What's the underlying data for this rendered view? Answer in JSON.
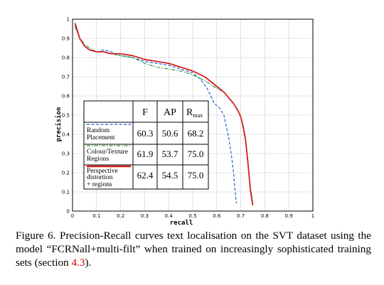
{
  "chart_data": {
    "type": "line",
    "xlabel": "recall",
    "ylabel": "precision",
    "xlim": [
      0,
      1
    ],
    "ylim": [
      0,
      1
    ],
    "xticks": [
      "0",
      "0.1",
      "0.2",
      "0.3",
      "0.4",
      "0.5",
      "0.6",
      "0.7",
      "0.8",
      "0.9",
      "1"
    ],
    "yticks": [
      "0",
      "0.1",
      "0.2",
      "0.3",
      "0.4",
      "0.5",
      "0.6",
      "0.7",
      "0.8",
      "0.9",
      "1"
    ],
    "grid": true,
    "legend_placement": "lower-left",
    "legend_headers": [
      "F",
      "AP",
      "R",
      "max"
    ],
    "series": [
      {
        "label_lines": [
          "Random",
          "Placement"
        ],
        "color": "#1f5fd6",
        "dash": "dashed",
        "F": "60.3",
        "AP": "50.6",
        "Rmax": "68.2",
        "x": [
          0.01,
          0.02,
          0.03,
          0.05,
          0.07,
          0.1,
          0.13,
          0.16,
          0.2,
          0.25,
          0.3,
          0.35,
          0.4,
          0.45,
          0.5,
          0.53,
          0.56,
          0.59,
          0.61,
          0.63,
          0.64,
          0.65,
          0.66,
          0.67,
          0.675,
          0.68,
          0.682
        ],
        "y": [
          0.97,
          0.94,
          0.9,
          0.86,
          0.84,
          0.83,
          0.84,
          0.83,
          0.81,
          0.8,
          0.78,
          0.77,
          0.76,
          0.74,
          0.72,
          0.69,
          0.64,
          0.56,
          0.54,
          0.5,
          0.44,
          0.38,
          0.3,
          0.2,
          0.12,
          0.06,
          0.04
        ]
      },
      {
        "label_lines": [
          "Colour/Texture",
          "Regions"
        ],
        "color": "#2e9e3e",
        "dash": "dashdot",
        "F": "61.9",
        "AP": "53.7",
        "Rmax": "75.0",
        "x": [
          0.01,
          0.02,
          0.03,
          0.05,
          0.07,
          0.1,
          0.13,
          0.16,
          0.2,
          0.25,
          0.3,
          0.35,
          0.4,
          0.45,
          0.5,
          0.55,
          0.6,
          0.63,
          0.65,
          0.67,
          0.69,
          0.7,
          0.71,
          0.72,
          0.73,
          0.74,
          0.75
        ],
        "y": [
          0.96,
          0.93,
          0.9,
          0.87,
          0.85,
          0.83,
          0.83,
          0.82,
          0.81,
          0.8,
          0.77,
          0.75,
          0.74,
          0.73,
          0.71,
          0.68,
          0.64,
          0.62,
          0.59,
          0.56,
          0.52,
          0.49,
          0.43,
          0.36,
          0.25,
          0.12,
          0.05
        ]
      },
      {
        "label_lines": [
          "Perspective",
          "distortion",
          "+ regions"
        ],
        "color": "#d42020",
        "dash": "solid",
        "F": "62.4",
        "AP": "54.5",
        "Rmax": "75.0",
        "x": [
          0.01,
          0.02,
          0.03,
          0.05,
          0.07,
          0.1,
          0.13,
          0.16,
          0.2,
          0.25,
          0.3,
          0.35,
          0.4,
          0.45,
          0.5,
          0.55,
          0.6,
          0.63,
          0.65,
          0.67,
          0.69,
          0.7,
          0.71,
          0.72,
          0.73,
          0.74,
          0.75
        ],
        "y": [
          0.98,
          0.94,
          0.9,
          0.86,
          0.84,
          0.83,
          0.83,
          0.82,
          0.82,
          0.81,
          0.79,
          0.78,
          0.77,
          0.75,
          0.73,
          0.7,
          0.65,
          0.62,
          0.59,
          0.56,
          0.52,
          0.49,
          0.44,
          0.37,
          0.25,
          0.11,
          0.03
        ]
      }
    ]
  },
  "caption": {
    "text_before": "Figure 6. Precision-Recall curves text localisation on the SVT dataset using the model “FCRNall+multi-filt” when trained on increasingly sophisticated training sets (section ",
    "ref": "4.3",
    "text_after": ")."
  }
}
